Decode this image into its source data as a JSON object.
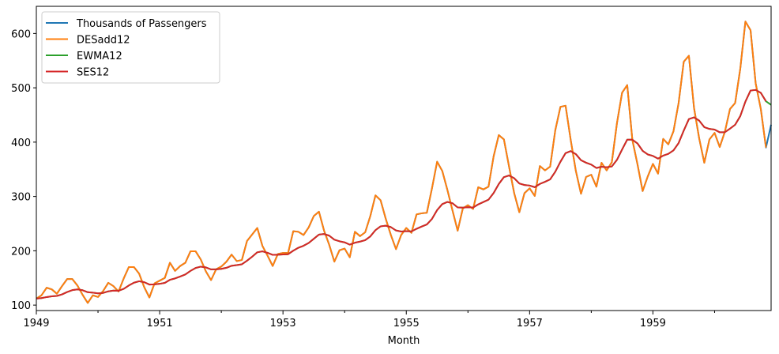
{
  "chart_data": {
    "type": "line",
    "title": "",
    "xlabel": "Month",
    "ylabel": "",
    "x_start": "1949-01",
    "x_end": "1960-12",
    "x_tick_labels": [
      "1949",
      "1951",
      "1953",
      "1955",
      "1957",
      "1959"
    ],
    "ylim": [
      90,
      650
    ],
    "y_ticks": [
      100,
      200,
      300,
      400,
      500,
      600
    ],
    "grid": false,
    "legend": "top-left",
    "series": [
      {
        "name": "Thousands of Passengers",
        "color": "#1f77b4",
        "values": [
          112,
          118,
          132,
          129,
          121,
          135,
          148,
          148,
          136,
          119,
          104,
          118,
          115,
          126,
          141,
          135,
          125,
          149,
          170,
          170,
          158,
          133,
          114,
          140,
          145,
          150,
          178,
          163,
          172,
          178,
          199,
          199,
          184,
          162,
          146,
          166,
          171,
          180,
          193,
          181,
          183,
          218,
          230,
          242,
          209,
          191,
          172,
          194,
          196,
          196,
          236,
          235,
          229,
          243,
          264,
          272,
          237,
          211,
          180,
          201,
          204,
          188,
          235,
          227,
          234,
          264,
          302,
          293,
          259,
          229,
          203,
          229,
          242,
          233,
          267,
          269,
          270,
          315,
          364,
          347,
          312,
          274,
          237,
          278,
          284,
          277,
          317,
          313,
          318,
          374,
          413,
          405,
          355,
          306,
          271,
          306,
          315,
          301,
          356,
          348,
          355,
          422,
          465,
          467,
          404,
          347,
          305,
          336,
          340,
          318,
          362,
          348,
          363,
          435,
          491,
          505,
          404,
          359,
          310,
          337,
          360,
          342,
          406,
          396,
          420,
          472,
          548,
          559,
          463,
          407,
          362,
          405,
          417,
          391,
          419,
          461,
          472,
          535,
          622,
          606,
          508,
          461,
          390,
          432
        ]
      },
      {
        "name": "DESadd12",
        "color": "#ff7f0e",
        "values": [
          112,
          118,
          132,
          129,
          121,
          135,
          148,
          148,
          136,
          119,
          104,
          118,
          115,
          126,
          141,
          135,
          125,
          149,
          170,
          170,
          158,
          133,
          114,
          140,
          145,
          150,
          178,
          163,
          172,
          178,
          199,
          199,
          184,
          162,
          146,
          166,
          171,
          180,
          193,
          181,
          183,
          218,
          230,
          242,
          209,
          191,
          172,
          194,
          196,
          196,
          236,
          235,
          229,
          243,
          264,
          272,
          237,
          211,
          180,
          201,
          204,
          188,
          235,
          227,
          234,
          264,
          302,
          293,
          259,
          229,
          203,
          229,
          242,
          233,
          267,
          269,
          270,
          315,
          364,
          347,
          312,
          274,
          237,
          278,
          284,
          277,
          317,
          313,
          318,
          374,
          413,
          405,
          355,
          306,
          271,
          306,
          315,
          301,
          356,
          348,
          355,
          422,
          465,
          467,
          404,
          347,
          305,
          336,
          340,
          318,
          362,
          348,
          363,
          435,
          491,
          505,
          404,
          359,
          310,
          337,
          360,
          342,
          406,
          396,
          420,
          472,
          548,
          559,
          463,
          407,
          362,
          405,
          417,
          391,
          419,
          461,
          472,
          535,
          622,
          606,
          508,
          461,
          390
        ]
      },
      {
        "name": "EWMA12",
        "color": "#2ca02c",
        "values": [
          112,
          112.9,
          114.8,
          116.2,
          116.9,
          119.7,
          124.1,
          127.6,
          128.9,
          127.4,
          123.8,
          122.9,
          121.7,
          122.4,
          125.3,
          126.7,
          126.4,
          129.9,
          136.1,
          141.3,
          143.9,
          142.2,
          137.9,
          138.2,
          139.2,
          140.9,
          146.6,
          149.1,
          152.6,
          156.5,
          163,
          168.4,
          170.8,
          169.4,
          165.8,
          165.9,
          166.7,
          168.7,
          172.4,
          173.7,
          175.1,
          181.7,
          189.1,
          197.2,
          199,
          196.2,
          192.5,
          192.8,
          193.3,
          193.7,
          200.2,
          205.6,
          209.2,
          214.4,
          222.1,
          229.8,
          230.9,
          227.8,
          220.5,
          217.5,
          215.5,
          211.3,
          214.9,
          216.9,
          219.6,
          226.5,
          238,
          245,
          246.2,
          243.6,
          237.4,
          235.5,
          236.1,
          235.6,
          240.5,
          244.6,
          248.5,
          258.7,
          274.9,
          285.9,
          289.9,
          287.5,
          279.8,
          279.5,
          280.2,
          279.6,
          285.4,
          289.7,
          294.1,
          306.4,
          322.9,
          335.6,
          338.6,
          333.6,
          323.9,
          321.1,
          320.1,
          317.1,
          323.1,
          327,
          331.5,
          345.5,
          363.9,
          379.8,
          383.5,
          377.9,
          366.7,
          362.1,
          358.7,
          352.4,
          354.7,
          353.8,
          355.2,
          367.4,
          386.4,
          404.6,
          404.5,
          397.5,
          384,
          377.3,
          374.6,
          369.6,
          375.2,
          378.4,
          384.8,
          398.3,
          421.3,
          442.5,
          445.6,
          439.6,
          427.6,
          424.3,
          423.1,
          418.1,
          418.2,
          424.8,
          432,
          447.9,
          474.6,
          495,
          496.1,
          490.7,
          475.2,
          468.7
        ]
      },
      {
        "name": "SES12",
        "color": "#d62728",
        "values": [
          112,
          112.9,
          114.8,
          116.2,
          116.9,
          119.7,
          124.1,
          127.6,
          128.9,
          127.4,
          123.8,
          122.9,
          121.7,
          122.4,
          125.3,
          126.7,
          126.4,
          129.9,
          136.1,
          141.3,
          143.9,
          142.2,
          137.9,
          138.2,
          139.2,
          140.9,
          146.6,
          149.1,
          152.6,
          156.5,
          163,
          168.4,
          170.8,
          169.4,
          165.8,
          165.9,
          166.7,
          168.7,
          172.4,
          173.7,
          175.1,
          181.7,
          189.1,
          197.2,
          199,
          196.2,
          192.5,
          192.8,
          193.3,
          193.7,
          200.2,
          205.6,
          209.2,
          214.4,
          222.1,
          229.8,
          230.9,
          227.8,
          220.5,
          217.5,
          215.5,
          211.3,
          214.9,
          216.9,
          219.6,
          226.5,
          238,
          245,
          246.2,
          243.6,
          237.4,
          235.5,
          236.1,
          235.6,
          240.5,
          244.6,
          248.5,
          258.7,
          274.9,
          285.9,
          289.9,
          287.5,
          279.8,
          279.5,
          280.2,
          279.6,
          285.4,
          289.7,
          294.1,
          306.4,
          322.9,
          335.6,
          338.6,
          333.6,
          323.9,
          321.1,
          320.1,
          317.1,
          323.1,
          327,
          331.5,
          345.5,
          363.9,
          379.8,
          383.5,
          377.9,
          366.7,
          362.1,
          358.7,
          352.4,
          354.7,
          353.8,
          355.2,
          367.4,
          386.4,
          404.6,
          404.5,
          397.5,
          384,
          377.3,
          374.6,
          369.6,
          375.2,
          378.4,
          384.8,
          398.3,
          421.3,
          442.5,
          445.6,
          439.6,
          427.6,
          424.3,
          423.1,
          418.1,
          418.2,
          424.8,
          432,
          447.9,
          474.6,
          495,
          496.1,
          490.7,
          475.2
        ]
      }
    ]
  }
}
